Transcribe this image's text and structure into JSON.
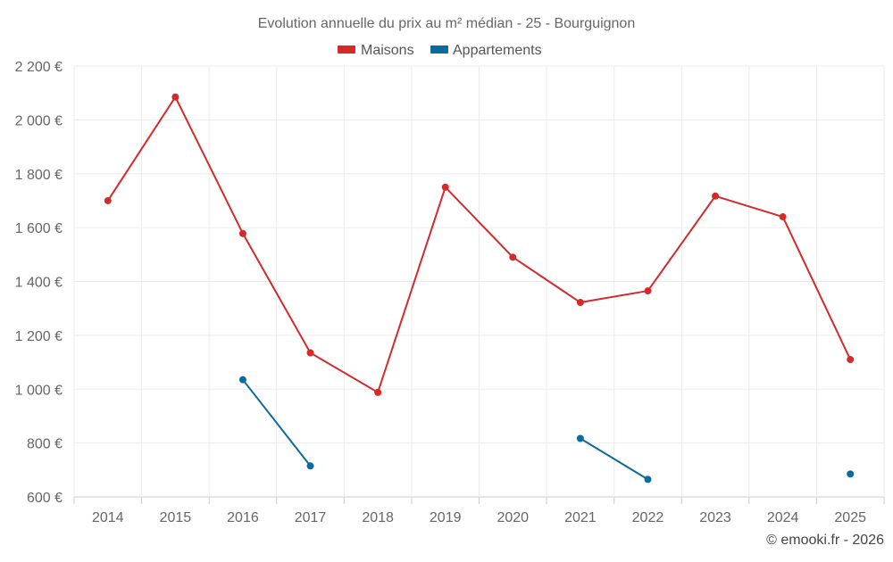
{
  "chart_data": {
    "type": "line",
    "title": "Evolution annuelle du prix au m² médian - 25 - Bourguignon",
    "categories": [
      "2014",
      "2015",
      "2016",
      "2017",
      "2018",
      "2019",
      "2020",
      "2021",
      "2022",
      "2023",
      "2024",
      "2025"
    ],
    "ylim": [
      600,
      2200
    ],
    "yticks": [
      600,
      800,
      1000,
      1200,
      1400,
      1600,
      1800,
      2000,
      2200
    ],
    "ytick_labels": [
      "600 €",
      "800 €",
      "1 000 €",
      "1 200 €",
      "1 400 €",
      "1 600 €",
      "1 800 €",
      "2 000 €",
      "2 200 €"
    ],
    "grid": true,
    "legend_position": "top-center",
    "series": [
      {
        "name": "Maisons",
        "color": "#d42a2a",
        "values": [
          1700,
          2085,
          1578,
          1135,
          988,
          1750,
          1490,
          1322,
          1365,
          1717,
          1640,
          1110
        ]
      },
      {
        "name": "Appartements",
        "color": "#0b6aa0",
        "values": [
          null,
          null,
          1035,
          715,
          null,
          null,
          null,
          817,
          665,
          null,
          null,
          685
        ]
      }
    ],
    "credit": "© emooki.fr - 2026"
  }
}
